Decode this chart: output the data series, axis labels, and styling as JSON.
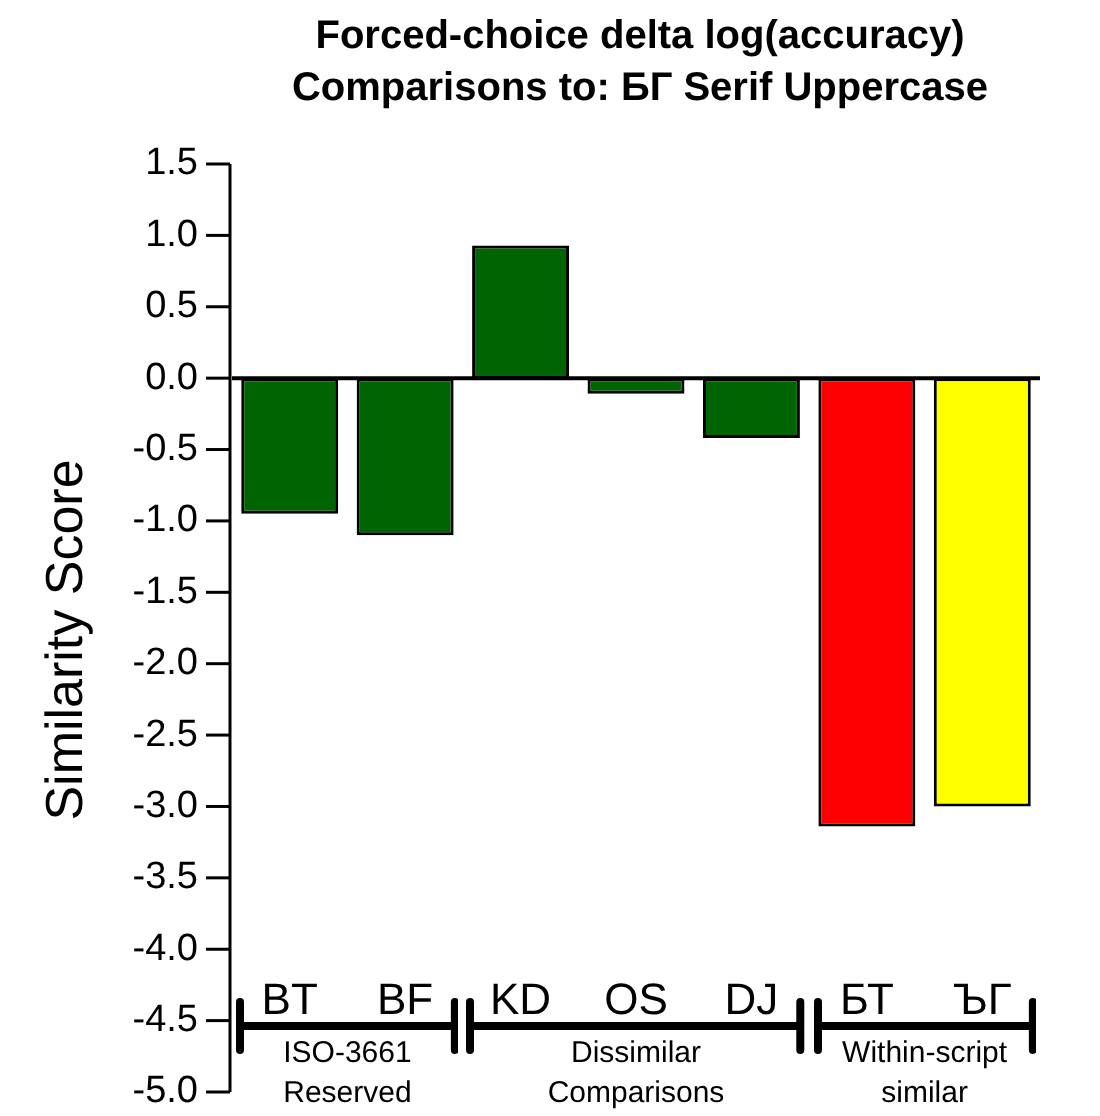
{
  "chart_data": {
    "type": "bar",
    "title": "Forced-choice delta log(accuracy)\nComparisons to: БГ Serif Uppercase",
    "ylabel": "Similarity Score",
    "categories": [
      "BT",
      "BF",
      "KD",
      "OS",
      "DJ",
      "БТ",
      "ЪГ"
    ],
    "values": [
      -0.95,
      -1.1,
      0.93,
      -0.11,
      -0.42,
      -3.14,
      -3.0
    ],
    "colors": [
      "#006400",
      "#006400",
      "#006400",
      "#006400",
      "#006400",
      "#ff0000",
      "#ffff00"
    ],
    "ylim": [
      -5,
      1.5
    ],
    "yticks": [
      {
        "value": 1.5,
        "label": "1.5"
      },
      {
        "value": 1,
        "label": "1.0"
      },
      {
        "value": 0.5,
        "label": "0.5"
      },
      {
        "value": 0,
        "label": "0.0"
      },
      {
        "value": -0.5,
        "label": "-0.5"
      },
      {
        "value": -1,
        "label": "-1.0"
      },
      {
        "value": -1.5,
        "label": "-1.5"
      },
      {
        "value": -2,
        "label": "-2.0"
      },
      {
        "value": -2.5,
        "label": "-2.5"
      },
      {
        "value": -3,
        "label": "-3.0"
      },
      {
        "value": -3.5,
        "label": "-3.5"
      },
      {
        "value": -4,
        "label": "-4.0"
      },
      {
        "value": -4.5,
        "label": "-4.5"
      },
      {
        "value": -5,
        "label": "-5.0"
      }
    ],
    "ref_lines": [
      {
        "axis": "y",
        "value": 0
      }
    ],
    "annotations": [
      "ISO-3661\nReserved",
      "Dissimilar\nComparisons",
      "Within-script\nsimilar"
    ],
    "legend": false
  }
}
